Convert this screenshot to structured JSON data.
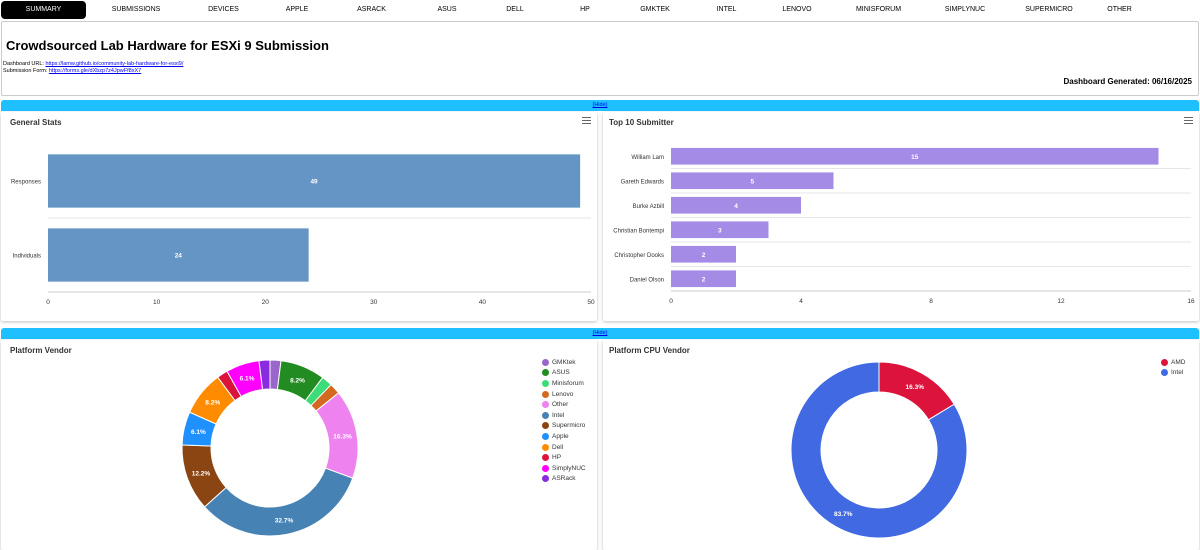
{
  "nav": {
    "tabs": [
      "SUMMARY",
      "SUBMISSIONS",
      "DEVICES",
      "APPLE",
      "ASRACK",
      "ASUS",
      "DELL",
      "HP",
      "GMKTEK",
      "INTEL",
      "LENOVO",
      "MINISFORUM",
      "SIMPLYNUC",
      "SUPERMICRO",
      "OTHER"
    ],
    "active": "SUMMARY"
  },
  "header": {
    "title": "Crowdsourced Lab Hardware for ESXi 9 Submission",
    "dashboard_label": "Dashboard URL:",
    "dashboard_url": "https://lamw.github.io/community-lab-hardware-for-esxi9/",
    "form_label": "Submission Form:",
    "form_url": "https://forms.gle/dXbzp7z4JpwFf8xX7",
    "generated": "Dashboard Generated: 06/16/2025"
  },
  "hide_label": "(Hide)",
  "colors": {
    "hide_bar": "#1ec0ff",
    "general_bar": "#6495c4",
    "submitter_bar": "#a38be6"
  },
  "icons": {
    "panel_menu": "hamburger-menu-icon"
  },
  "charts": {
    "general": {
      "title": "General Stats",
      "chart_data": {
        "type": "bar",
        "orientation": "horizontal",
        "categories": [
          "Responses",
          "Individuals"
        ],
        "values": [
          49,
          24
        ],
        "xlim": [
          0,
          50
        ],
        "xticks": [
          0,
          10,
          20,
          30,
          40,
          50
        ]
      }
    },
    "submitters": {
      "title": "Top 10 Submitter",
      "chart_data": {
        "type": "bar",
        "orientation": "horizontal",
        "categories": [
          "William Lam",
          "Gareth Edwards",
          "Burke Azbill",
          "Christian Bontempi",
          "Christopher Dooks",
          "Daniel Olson"
        ],
        "values": [
          15,
          5,
          4,
          3,
          2,
          2
        ],
        "xlim": [
          0,
          16
        ],
        "xticks": [
          0,
          4,
          8,
          12,
          16
        ]
      }
    },
    "vendor": {
      "title": "Platform Vendor",
      "chart_data": {
        "type": "pie",
        "style": "donut",
        "legend_position": "right",
        "slices": [
          {
            "label": "GMKtek",
            "value": 2.0,
            "color": "#9966cc",
            "show": ""
          },
          {
            "label": "ASUS",
            "value": 8.2,
            "color": "#228b22",
            "show": "8.2%"
          },
          {
            "label": "Minisforum",
            "value": 2.0,
            "color": "#3cdc78",
            "show": ""
          },
          {
            "label": "Lenovo",
            "value": 2.0,
            "color": "#d2691e",
            "show": ""
          },
          {
            "label": "Other",
            "value": 16.3,
            "color": "#ee82ee",
            "show": "16.3%"
          },
          {
            "label": "Intel",
            "value": 32.7,
            "color": "#4682b4",
            "show": "32.7%"
          },
          {
            "label": "Supermicro",
            "value": 12.2,
            "color": "#8b4513",
            "show": "12.2%"
          },
          {
            "label": "Apple",
            "value": 6.1,
            "color": "#1e90ff",
            "show": "6.1%"
          },
          {
            "label": "Dell",
            "value": 8.2,
            "color": "#ff8c00",
            "show": "8.2%"
          },
          {
            "label": "HP",
            "value": 2.0,
            "color": "#dc143c",
            "show": ""
          },
          {
            "label": "SimplyNUC",
            "value": 6.1,
            "color": "#ff00ff",
            "show": "6.1%"
          },
          {
            "label": "ASRack",
            "value": 2.0,
            "color": "#8a2be2",
            "show": ""
          }
        ]
      }
    },
    "cpu": {
      "title": "Platform CPU Vendor",
      "chart_data": {
        "type": "pie",
        "style": "donut",
        "legend_position": "top-right",
        "slices": [
          {
            "label": "AMD",
            "value": 16.3,
            "color": "#dc143c",
            "show": "16.3%"
          },
          {
            "label": "Intel",
            "value": 83.7,
            "color": "#4169e1",
            "show": "83.7%"
          }
        ]
      }
    }
  }
}
